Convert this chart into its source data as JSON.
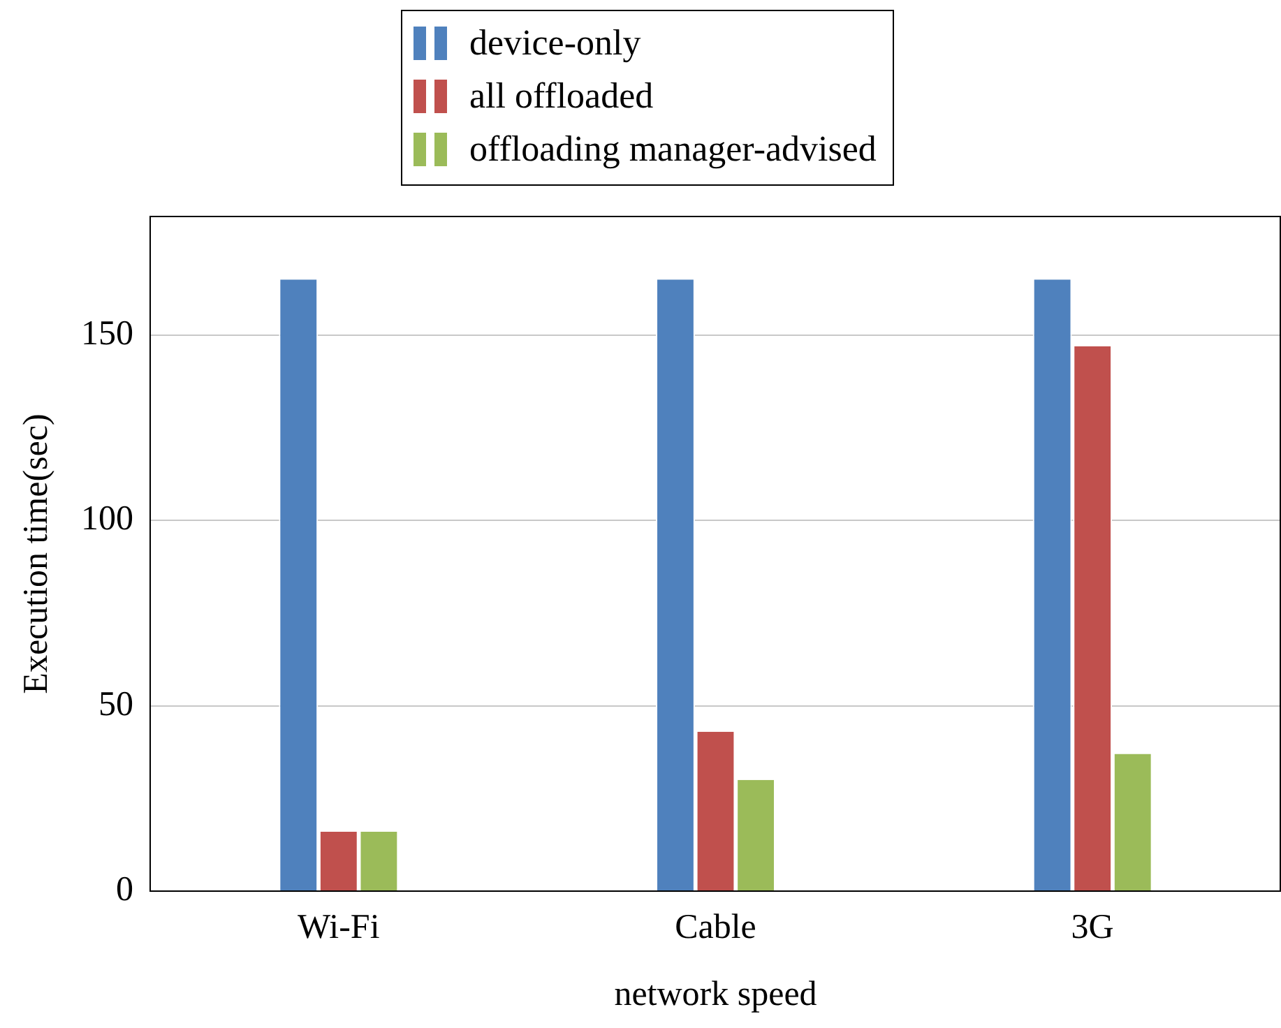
{
  "chart_data": {
    "type": "bar",
    "xlabel": "network speed",
    "ylabel": "Execution time(sec)",
    "categories": [
      "Wi-Fi",
      "Cable",
      "3G"
    ],
    "series": [
      {
        "name": "device-only",
        "color": "#4f81bd",
        "values": [
          165,
          165,
          165
        ]
      },
      {
        "name": "all offloaded",
        "color": "#c0504d",
        "values": [
          16,
          43,
          147
        ]
      },
      {
        "name": "offloading manager-advised",
        "color": "#9bbb59",
        "values": [
          16,
          30,
          37
        ]
      }
    ],
    "ylim": [
      0,
      182
    ],
    "yticks": [
      0,
      50,
      100,
      150
    ],
    "grid": "y",
    "legend": "top"
  }
}
